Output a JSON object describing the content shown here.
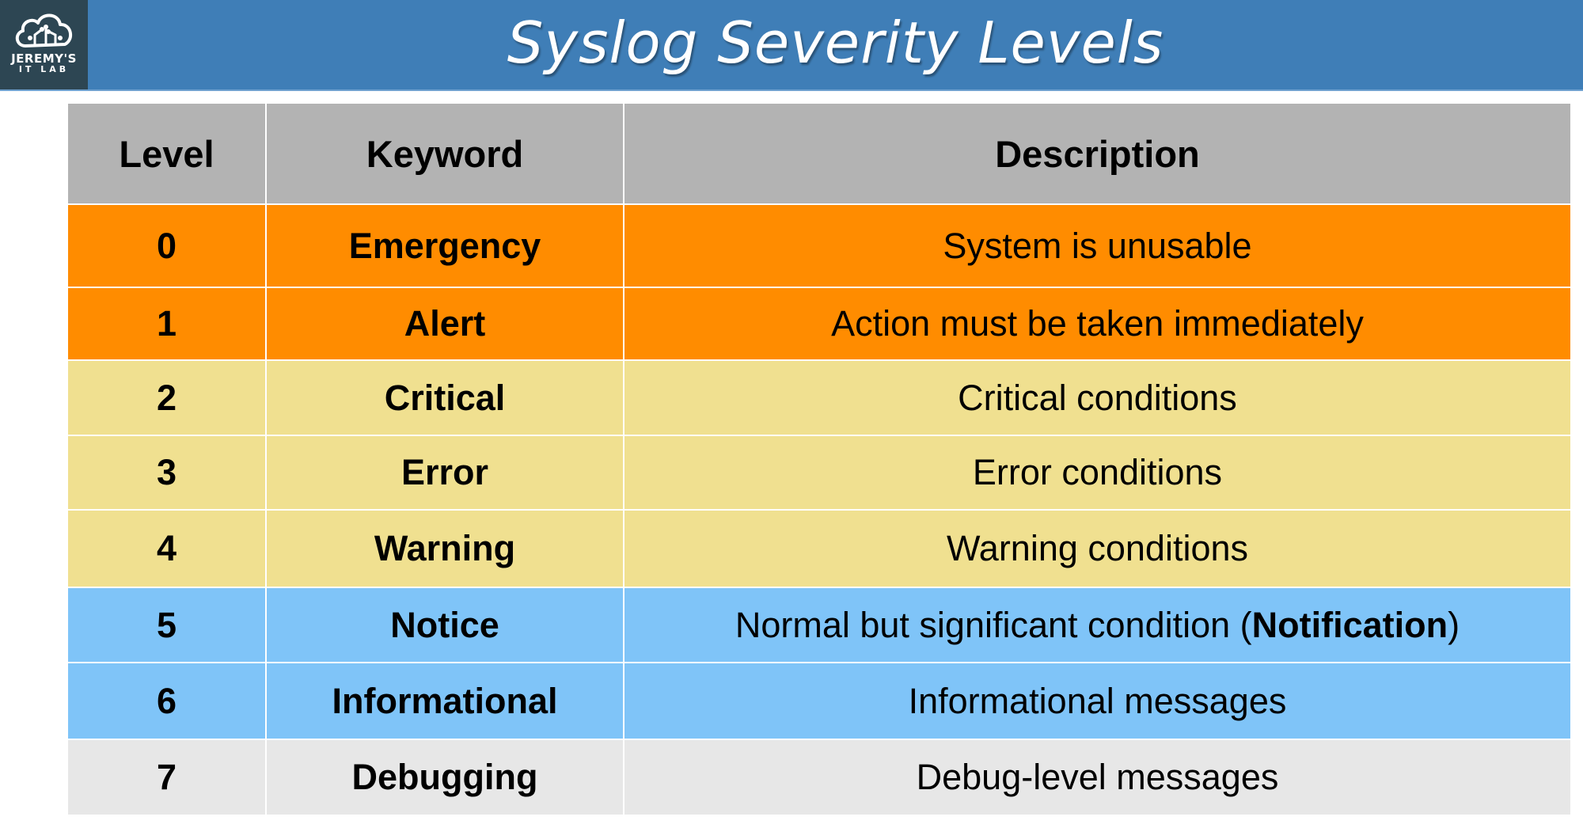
{
  "logo": {
    "line1": "JEREMY'S",
    "line2": "IT LAB"
  },
  "title": "Syslog Severity Levels",
  "table": {
    "headers": [
      "Level",
      "Keyword",
      "Description"
    ],
    "rows": [
      {
        "level": "0",
        "keyword": "Emergency",
        "description": "System is unusable",
        "color": "#ff8c00"
      },
      {
        "level": "1",
        "keyword": "Alert",
        "description": "Action must be taken immediately",
        "color": "#ff8c00"
      },
      {
        "level": "2",
        "keyword": "Critical",
        "description": "Critical conditions",
        "color": "#f0e090"
      },
      {
        "level": "3",
        "keyword": "Error",
        "description": "Error conditions",
        "color": "#f0e090"
      },
      {
        "level": "4",
        "keyword": "Warning",
        "description": "Warning conditions",
        "color": "#f0e090"
      },
      {
        "level": "5",
        "keyword": "Notice",
        "description_pre": "Normal but significant condition (",
        "description_bold": "Notification",
        "description_post": ")",
        "color": "#7fc4f8"
      },
      {
        "level": "6",
        "keyword": "Informational",
        "description": "Informational messages",
        "color": "#7fc4f8"
      },
      {
        "level": "7",
        "keyword": "Debugging",
        "description": "Debug-level messages",
        "color": "#e7e7e7"
      }
    ]
  },
  "colors": {
    "header_bar": "#3f7eb7",
    "logo_bg": "#2d4653",
    "table_header": "#b3b3b3"
  }
}
